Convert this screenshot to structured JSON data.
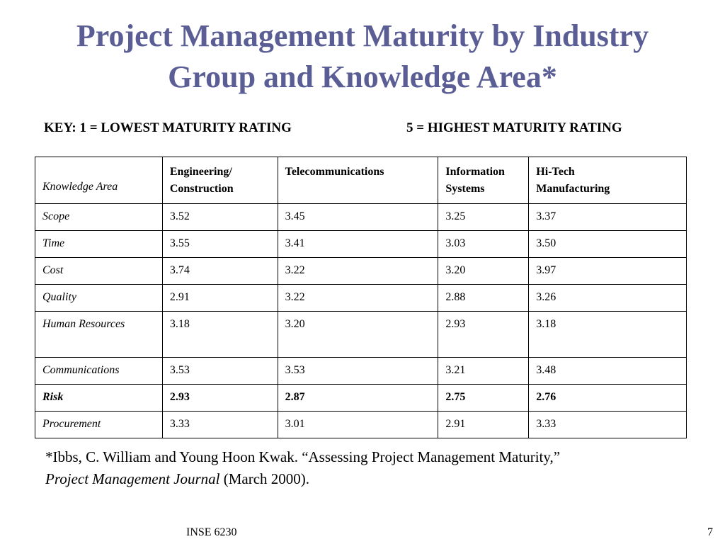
{
  "slide": {
    "title_line1": "Project Management Maturity by Industry",
    "title_line2": "Group and Knowledge Area*",
    "key_low": "KEY: 1 = LOWEST MATURITY RATING",
    "key_high": "5 = HIGHEST MATURITY RATING"
  },
  "table": {
    "headers": {
      "knowledge_area": "Knowledge Area",
      "col1_line1": "Engineering/",
      "col1_line2": "Construction",
      "col2_line1": "Telecommunications",
      "col3_line1": "Information",
      "col3_line2": "Systems",
      "col4_line1": "Hi-Tech",
      "col4_line2": "Manufacturing"
    },
    "rows": [
      {
        "area": "Scope",
        "values": [
          "3.52",
          "3.45",
          "3.25",
          "3.37"
        ]
      },
      {
        "area": "Time",
        "values": [
          "3.55",
          "3.41",
          "3.03",
          "3.50"
        ]
      },
      {
        "area": "Cost",
        "values": [
          "3.74",
          "3.22",
          "3.20",
          "3.97"
        ]
      },
      {
        "area": "Quality",
        "values": [
          "2.91",
          "3.22",
          "2.88",
          "3.26"
        ]
      },
      {
        "area": "Human Resources",
        "values": [
          "3.18",
          "3.20",
          "2.93",
          "3.18"
        ]
      },
      {
        "area": "Communications",
        "values": [
          "3.53",
          "3.53",
          "3.21",
          "3.48"
        ]
      },
      {
        "area": "Risk",
        "values": [
          "2.93",
          "2.87",
          "2.75",
          "2.76"
        ]
      },
      {
        "area": "Procurement",
        "values": [
          "3.33",
          "3.01",
          "2.91",
          "3.33"
        ]
      }
    ]
  },
  "citation": {
    "line1": "*Ibbs, C. William and Young Hoon Kwak. “Assessing Project Management Maturity,”",
    "journal": "Project Management Journal",
    "rest": " (March 2000)."
  },
  "footer": {
    "course": "INSE 6230",
    "page": "7"
  }
}
